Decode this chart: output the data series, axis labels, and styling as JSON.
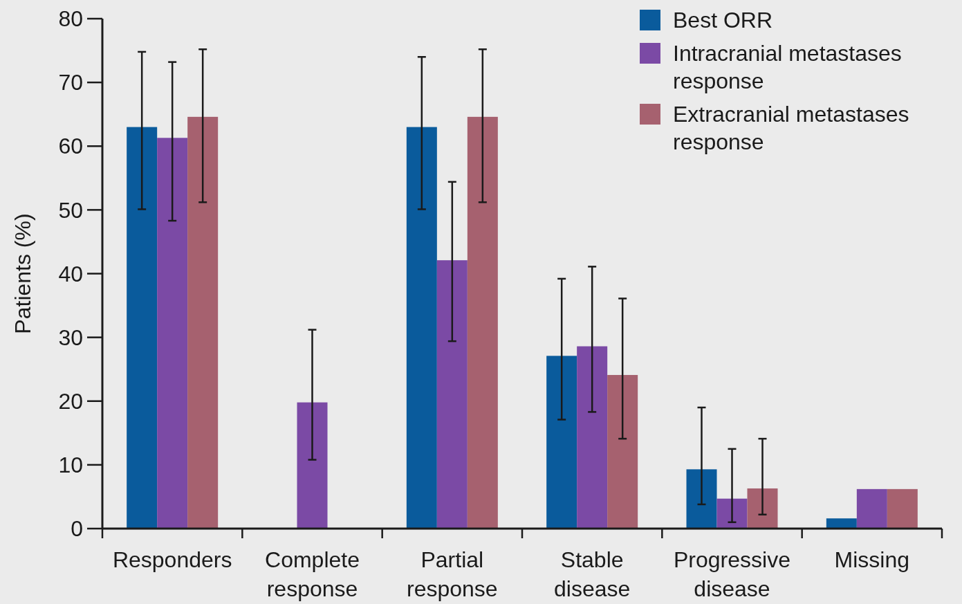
{
  "chart_data": {
    "type": "bar",
    "ylabel": "Patients (%)",
    "categories": [
      "Responders",
      "Complete response",
      "Partial response",
      "Stable disease",
      "Progressive disease",
      "Missing"
    ],
    "series": [
      {
        "name": "Best ORR",
        "color": "#0a5b9c",
        "values": [
          63,
          0,
          63,
          27.1,
          9.3,
          1.6
        ],
        "errors": [
          [
            50.1,
            74.8
          ],
          null,
          [
            50.1,
            74
          ],
          [
            17.1,
            39.2
          ],
          [
            3.8,
            19
          ],
          null
        ]
      },
      {
        "name": "Intracranial metastases response",
        "color": "#7b4aa5",
        "values": [
          61.3,
          19.8,
          42.1,
          28.6,
          4.7,
          6.2
        ],
        "errors": [
          [
            48.3,
            73.2
          ],
          [
            10.8,
            31.2
          ],
          [
            29.4,
            54.4
          ],
          [
            18.3,
            41.1
          ],
          [
            1,
            12.5
          ],
          null
        ]
      },
      {
        "name": "Extracranial metastases response",
        "color": "#a6616f",
        "values": [
          64.6,
          0,
          64.6,
          24.1,
          6.3,
          6.2
        ],
        "errors": [
          [
            51.2,
            75.2
          ],
          null,
          [
            51.2,
            75.2
          ],
          [
            14.1,
            36.1
          ],
          [
            2.2,
            14.1
          ],
          null
        ]
      }
    ],
    "ylim": [
      0,
      80
    ],
    "yticks": [
      0,
      10,
      20,
      30,
      40,
      50,
      60,
      70,
      80
    ],
    "grid": false,
    "legend": "top right"
  }
}
